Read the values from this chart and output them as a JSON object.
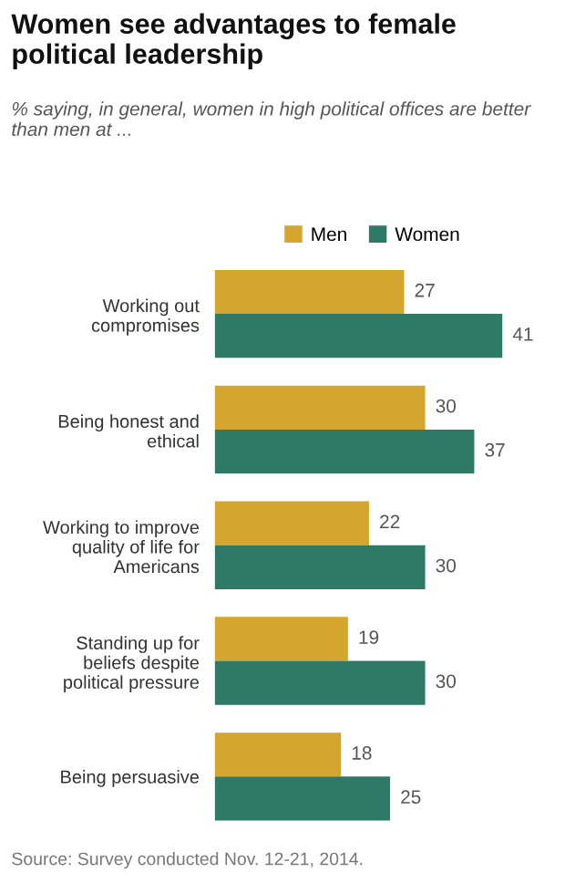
{
  "chart_data": {
    "type": "bar",
    "orientation": "horizontal",
    "title": "Women see advantages to female political leadership",
    "subtitle": "% saying, in general, women in high political offices are better than men at ...",
    "categories": [
      "Working out\ncompromises",
      "Being honest and\nethical",
      "Working to improve\nquality of life for\nAmericans",
      "Standing up for\nbeliefs despite\npolitical pressure",
      "Being persuasive"
    ],
    "series": [
      {
        "name": "Men",
        "color": "#d4a62e",
        "values": [
          27,
          30,
          22,
          19,
          18
        ]
      },
      {
        "name": "Women",
        "color": "#2e7a66",
        "values": [
          41,
          37,
          30,
          30,
          25
        ]
      }
    ],
    "data_labels": true,
    "legend": "top",
    "grid": false,
    "annotations": [
      "Source: Survey conducted Nov. 12-21, 2014."
    ]
  }
}
